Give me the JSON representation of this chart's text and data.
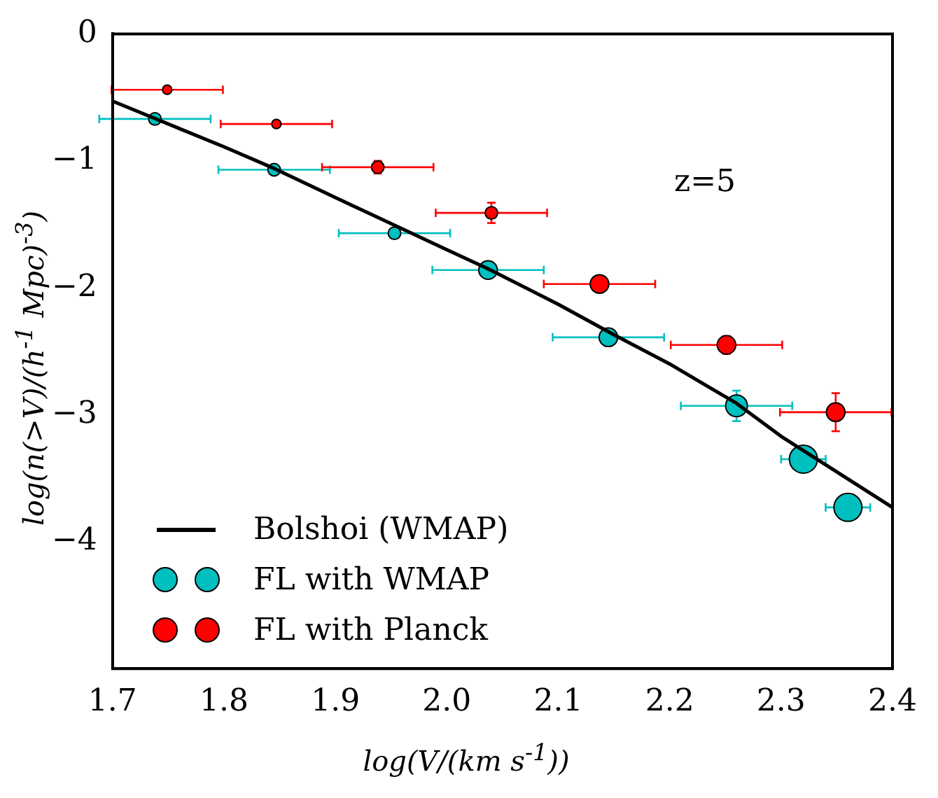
{
  "chart_data": {
    "type": "bubble",
    "xlabel": "log(V/(km s$^{-1}$))",
    "ylabel": "log(n(>V)/(h$^{-1}$ Mpc)$^{-3}$)",
    "annotations": [
      "z=5"
    ],
    "xlim": [
      1.7,
      2.4
    ],
    "xticks": [
      1.7,
      1.8,
      1.9,
      {
        "value": 2,
        "label": "2.0"
      },
      2.1,
      2.2,
      2.3,
      2.4
    ],
    "ylim": [
      -5,
      0
    ],
    "yticks": [
      {
        "value": -4,
        "label": "−4"
      },
      {
        "value": -3,
        "label": "−3"
      },
      {
        "value": -2,
        "label": "−2"
      },
      {
        "value": -1,
        "label": "−1"
      },
      0
    ],
    "grid": false,
    "legend": "bottom left",
    "series": [
      {
        "name": "Bolshoi (WMAP)",
        "type": "line",
        "color": "#000000",
        "line_style": "solid",
        "marker": "none",
        "x": [
          1.7,
          1.8,
          1.845,
          1.9,
          2.0,
          2.037,
          2.1,
          2.15,
          2.2,
          2.26,
          2.3,
          2.35,
          2.4
        ],
        "values": [
          -0.53,
          -0.89,
          -1.06,
          -1.29,
          -1.7,
          -1.85,
          -2.13,
          -2.37,
          -2.6,
          -2.91,
          -3.17,
          -3.45,
          -3.73
        ]
      },
      {
        "name": "FL with WMAP",
        "color": "#00bfbf",
        "marker": "circle",
        "x": [
          1.738,
          1.845,
          1.953,
          2.037,
          2.145,
          2.26,
          2.32,
          2.36
        ],
        "values": [
          -0.67,
          -1.07,
          -1.57,
          -1.86,
          -2.39,
          -2.93,
          -3.35,
          -3.73
        ],
        "sizes": [
          0.2,
          0.2,
          0.2,
          0.44,
          0.44,
          0.6,
          1,
          1
        ],
        "errors": [
          0.02,
          0.02,
          0.03,
          0.04,
          0.05,
          0.12,
          0.05,
          0.1
        ],
        "xerrors": [
          0.05,
          0.05,
          0.05,
          0.05,
          0.05,
          0.05,
          0.02,
          0.02
        ]
      },
      {
        "name": "FL with Planck",
        "color": "#ff0000",
        "marker": "circle",
        "x": [
          1.749,
          1.847,
          1.938,
          2.04,
          2.137,
          2.251,
          2.349
        ],
        "values": [
          -0.44,
          -0.71,
          -1.05,
          -1.41,
          -1.97,
          -2.45,
          -2.98
        ],
        "sizes": [
          0.11,
          0.11,
          0.2,
          0.2,
          0.44,
          0.44,
          0.44
        ],
        "errors": [
          0.02,
          0.02,
          0.05,
          0.08,
          0.05,
          0.07,
          0.15
        ],
        "xerrors": [
          0.05,
          0.05,
          0.05,
          0.05,
          0.05,
          0.05,
          0.05
        ]
      }
    ]
  }
}
